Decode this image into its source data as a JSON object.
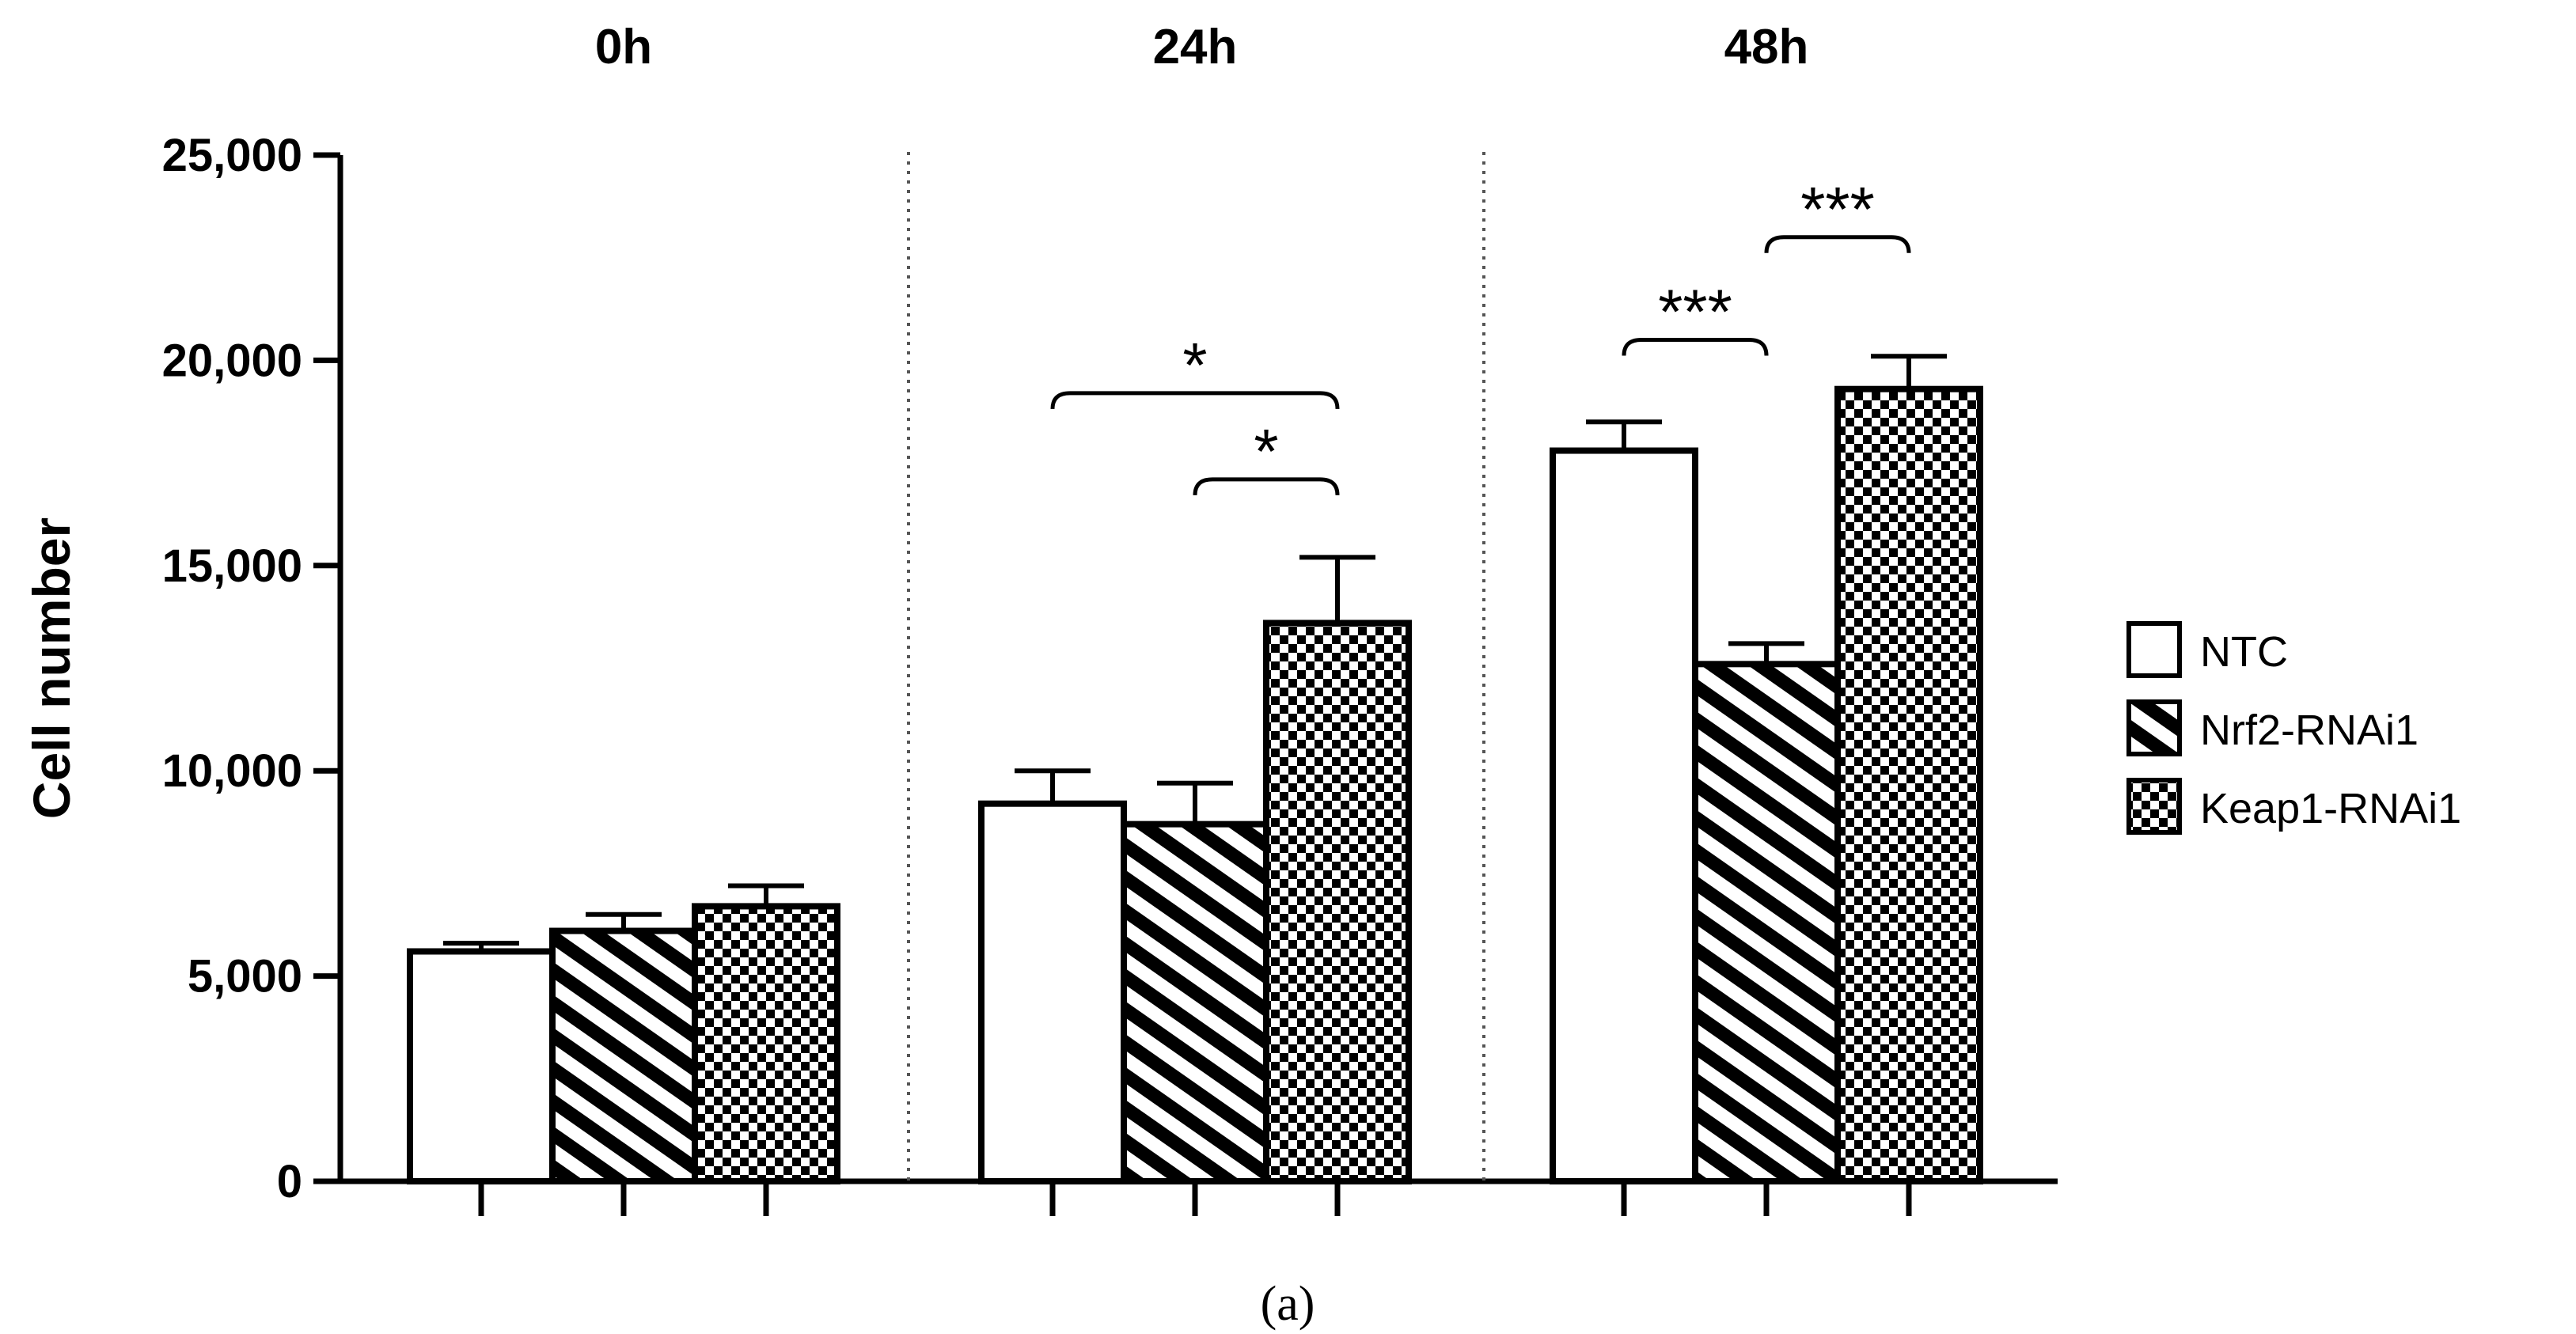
{
  "chart_data": {
    "type": "bar",
    "categories": [
      "0h",
      "24h",
      "48h"
    ],
    "series": [
      {
        "name": "NTC",
        "pattern": "solid-white",
        "values": [
          5600,
          9200,
          17800
        ],
        "errors": [
          200,
          800,
          700
        ]
      },
      {
        "name": "Nrf2-RNAi1",
        "pattern": "diagonal-stripes",
        "values": [
          6100,
          8700,
          12600
        ],
        "errors": [
          400,
          1000,
          500
        ]
      },
      {
        "name": "Keap1-RNAi1",
        "pattern": "checkerboard",
        "values": [
          6700,
          13600,
          19300
        ],
        "errors": [
          500,
          1600,
          800
        ]
      }
    ],
    "ylabel": "Cell number",
    "xlabel": "",
    "ylim": [
      0,
      25000
    ],
    "yticks": [
      0,
      5000,
      10000,
      15000,
      20000,
      25000
    ],
    "ytick_labels": [
      "0",
      "5,000",
      "10,000",
      "15,000",
      "20,000",
      "25,000"
    ],
    "significance": [
      {
        "category": "24h",
        "from": "NTC",
        "to": "Keap1-RNAi1",
        "label": "*",
        "y": 19200
      },
      {
        "category": "24h",
        "from": "Nrf2-RNAi1",
        "to": "Keap1-RNAi1",
        "label": "*",
        "y": 17100
      },
      {
        "category": "48h",
        "from": "NTC",
        "to": "Nrf2-RNAi1",
        "label": "***",
        "y": 20500
      },
      {
        "category": "48h",
        "from": "Nrf2-RNAi1",
        "to": "Keap1-RNAi1",
        "label": "***",
        "y": 23000
      }
    ],
    "legend_position": "right",
    "caption": "(a)"
  }
}
